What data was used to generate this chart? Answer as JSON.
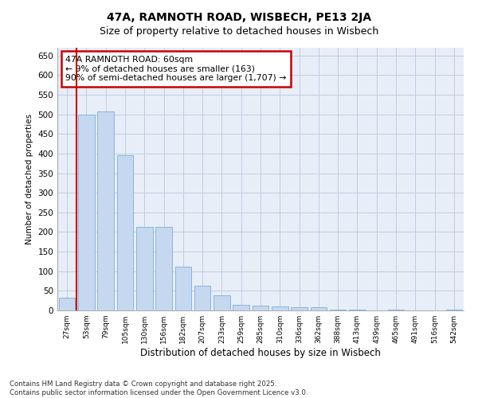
{
  "title": "47A, RAMNOTH ROAD, WISBECH, PE13 2JA",
  "subtitle": "Size of property relative to detached houses in Wisbech",
  "xlabel": "Distribution of detached houses by size in Wisbech",
  "ylabel": "Number of detached properties",
  "categories": [
    "27sqm",
    "53sqm",
    "79sqm",
    "105sqm",
    "130sqm",
    "156sqm",
    "182sqm",
    "207sqm",
    "233sqm",
    "259sqm",
    "285sqm",
    "310sqm",
    "336sqm",
    "362sqm",
    "388sqm",
    "413sqm",
    "439sqm",
    "465sqm",
    "491sqm",
    "516sqm",
    "542sqm"
  ],
  "values": [
    32,
    500,
    507,
    395,
    213,
    213,
    112,
    62,
    38,
    15,
    13,
    10,
    8,
    9,
    3,
    2,
    1,
    2,
    0,
    1,
    2
  ],
  "bar_color": "#c5d8f0",
  "bar_edge_color": "#7bafd4",
  "vline_color": "#cc0000",
  "annotation_text": "47A RAMNOTH ROAD: 60sqm\n← 9% of detached houses are smaller (163)\n90% of semi-detached houses are larger (1,707) →",
  "annotation_box_color": "#ffffff",
  "annotation_box_edge": "#cc0000",
  "ylim": [
    0,
    670
  ],
  "yticks": [
    0,
    50,
    100,
    150,
    200,
    250,
    300,
    350,
    400,
    450,
    500,
    550,
    600,
    650
  ],
  "footer": "Contains HM Land Registry data © Crown copyright and database right 2025.\nContains public sector information licensed under the Open Government Licence v3.0.",
  "bg_color": "#ffffff",
  "plot_bg_color": "#e8eef8",
  "grid_color": "#c0cce0"
}
